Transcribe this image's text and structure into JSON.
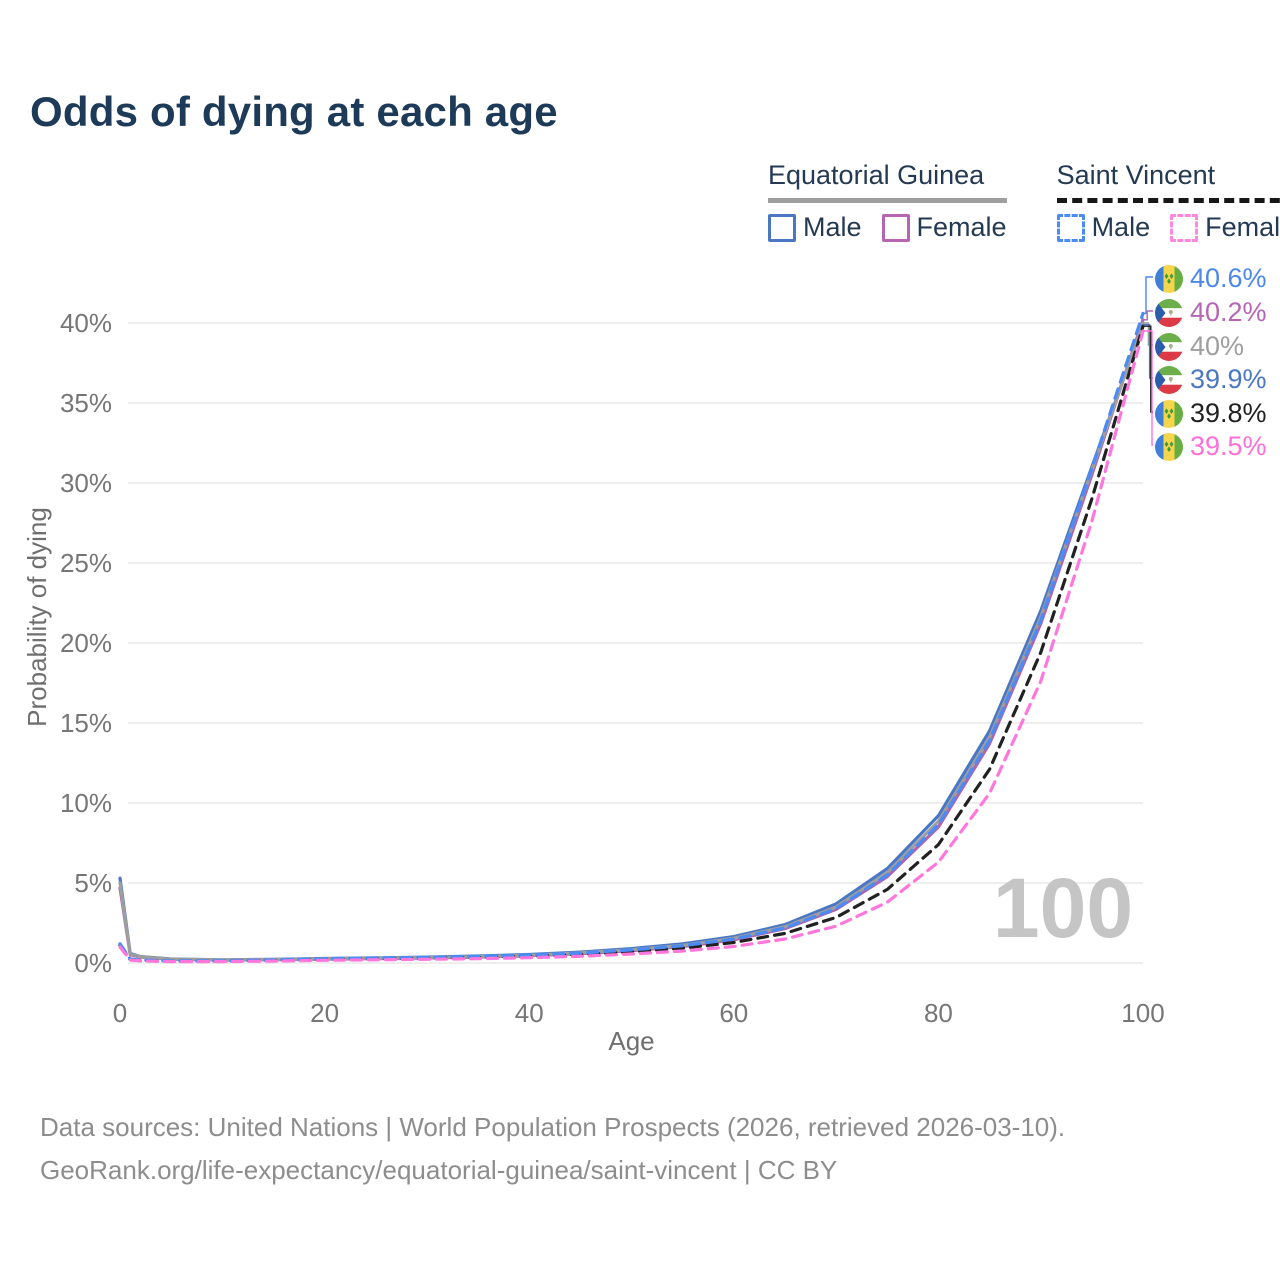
{
  "title": "Odds of dying at each age",
  "watermark": "100",
  "legend": {
    "groups": [
      {
        "label": "Equatorial Guinea",
        "line_style": "solid",
        "underline_color": "#9e9e9e",
        "items": [
          {
            "label": "Male",
            "color": "#4a77c4",
            "dashed": false
          },
          {
            "label": "Female",
            "color": "#b665b5",
            "dashed": false
          }
        ]
      },
      {
        "label": "Saint Vincent",
        "line_style": "dashed",
        "underline_color": "#171717",
        "items": [
          {
            "label": "Male",
            "color": "#4b8bf5",
            "dashed": true
          },
          {
            "label": "Female",
            "color": "#ff87e0",
            "dashed": true
          }
        ]
      }
    ]
  },
  "footer": {
    "line1": "Data sources: United Nations | World Population Prospects (2026, retrieved 2026-03-10).",
    "line2": "GeoRank.org/life-expectancy/equatorial-guinea/saint-vincent | CC BY"
  },
  "chart_data": {
    "type": "line",
    "title": "Odds of dying at each age",
    "xlabel": "Age",
    "ylabel": "Probability of dying",
    "xlim": [
      0,
      100
    ],
    "ylim": [
      0,
      43
    ],
    "grid": "horizontal",
    "legend_position": "top-right",
    "xticks": [
      0,
      20,
      40,
      60,
      80,
      100
    ],
    "yticks": [
      0,
      5,
      10,
      15,
      20,
      25,
      30,
      35,
      40
    ],
    "x": [
      0,
      1,
      2,
      5,
      10,
      15,
      20,
      25,
      30,
      35,
      40,
      45,
      50,
      55,
      60,
      65,
      70,
      75,
      80,
      85,
      90,
      95,
      100
    ],
    "series": [
      {
        "name": "Equatorial Guinea Male",
        "country": "Equatorial Guinea",
        "sex": "male",
        "color": "#4a77c4",
        "dashed": false,
        "values": [
          5.3,
          0.6,
          0.4,
          0.25,
          0.2,
          0.23,
          0.28,
          0.32,
          0.37,
          0.44,
          0.53,
          0.68,
          0.9,
          1.2,
          1.65,
          2.4,
          3.7,
          5.9,
          9.2,
          14.5,
          22.0,
          31.0,
          39.9
        ]
      },
      {
        "name": "Equatorial Guinea Female",
        "country": "Equatorial Guinea",
        "sex": "female",
        "color": "#ad63ad",
        "dashed": false,
        "values": [
          4.7,
          0.52,
          0.36,
          0.23,
          0.18,
          0.2,
          0.24,
          0.27,
          0.31,
          0.37,
          0.45,
          0.58,
          0.77,
          1.03,
          1.45,
          2.15,
          3.35,
          5.4,
          8.5,
          13.7,
          21.2,
          30.5,
          40.2
        ]
      },
      {
        "name": "Equatorial Guinea Both",
        "country": "Equatorial Guinea",
        "sex": "both",
        "color": "#9e9e9e",
        "dashed": false,
        "values": [
          5.0,
          0.56,
          0.38,
          0.24,
          0.19,
          0.21,
          0.26,
          0.3,
          0.34,
          0.4,
          0.49,
          0.63,
          0.83,
          1.1,
          1.55,
          2.27,
          3.5,
          5.65,
          8.85,
          14.1,
          21.6,
          30.8,
          40.0
        ]
      },
      {
        "name": "Saint Vincent Both",
        "country": "Saint Vincent",
        "sex": "both",
        "color": "#212121",
        "dashed": true,
        "values": [
          1.1,
          0.22,
          0.16,
          0.11,
          0.11,
          0.16,
          0.22,
          0.26,
          0.3,
          0.35,
          0.43,
          0.54,
          0.7,
          0.93,
          1.28,
          1.85,
          2.85,
          4.6,
          7.4,
          12.1,
          19.4,
          29.0,
          39.8
        ]
      },
      {
        "name": "Saint Vincent Male",
        "country": "Saint Vincent",
        "sex": "male",
        "color": "#4b8bf5",
        "dashed": true,
        "values": [
          1.2,
          0.25,
          0.18,
          0.13,
          0.13,
          0.19,
          0.27,
          0.31,
          0.35,
          0.41,
          0.5,
          0.62,
          0.82,
          1.08,
          1.5,
          2.2,
          3.4,
          5.5,
          8.65,
          13.9,
          21.4,
          30.9,
          40.6
        ]
      },
      {
        "name": "Saint Vincent Female",
        "country": "Saint Vincent",
        "sex": "female",
        "color": "#ff77dd",
        "dashed": true,
        "values": [
          1.0,
          0.18,
          0.13,
          0.09,
          0.09,
          0.12,
          0.17,
          0.2,
          0.23,
          0.27,
          0.33,
          0.42,
          0.56,
          0.75,
          1.03,
          1.5,
          2.3,
          3.8,
          6.3,
          10.6,
          17.6,
          27.6,
          39.5
        ]
      }
    ],
    "end_labels": [
      {
        "text": "40.6%",
        "color": "#4c87ea",
        "flag": "saint-vincent",
        "series": "Saint Vincent Male"
      },
      {
        "text": "40.2%",
        "color": "#b665b5",
        "flag": "equatorial-guinea",
        "series": "Equatorial Guinea Female"
      },
      {
        "text": "40%",
        "color": "#9e9e9e",
        "flag": "equatorial-guinea",
        "series": "Equatorial Guinea Both"
      },
      {
        "text": "39.9%",
        "color": "#4a77c4",
        "flag": "equatorial-guinea",
        "series": "Equatorial Guinea Male"
      },
      {
        "text": "39.8%",
        "color": "#212121",
        "flag": "saint-vincent",
        "series": "Saint Vincent Both"
      },
      {
        "text": "39.5%",
        "color": "#ff6fd8",
        "flag": "saint-vincent",
        "series": "Saint Vincent Female"
      }
    ]
  }
}
